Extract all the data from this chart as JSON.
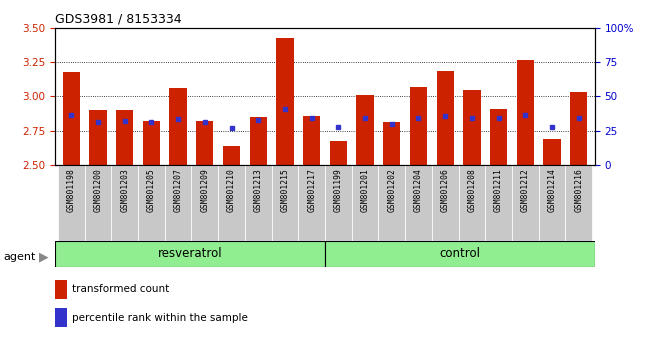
{
  "title": "GDS3981 / 8153334",
  "samples": [
    "GSM801198",
    "GSM801200",
    "GSM801203",
    "GSM801205",
    "GSM801207",
    "GSM801209",
    "GSM801210",
    "GSM801213",
    "GSM801215",
    "GSM801217",
    "GSM801199",
    "GSM801201",
    "GSM801202",
    "GSM801204",
    "GSM801206",
    "GSM801208",
    "GSM801211",
    "GSM801212",
    "GSM801214",
    "GSM801216"
  ],
  "red_values": [
    3.18,
    2.9,
    2.9,
    2.82,
    3.06,
    2.82,
    2.64,
    2.85,
    3.43,
    2.86,
    2.67,
    3.01,
    2.81,
    3.07,
    3.19,
    3.05,
    2.91,
    3.27,
    2.69,
    3.03
  ],
  "blue_values": [
    2.865,
    2.815,
    2.82,
    2.815,
    2.835,
    2.815,
    2.765,
    2.83,
    2.905,
    2.845,
    2.775,
    2.84,
    2.795,
    2.845,
    2.855,
    2.84,
    2.84,
    2.865,
    2.775,
    2.84
  ],
  "ylim": [
    2.5,
    3.5
  ],
  "y_ticks": [
    2.5,
    2.75,
    3.0,
    3.25,
    3.5
  ],
  "right_yticks": [
    0,
    25,
    50,
    75,
    100
  ],
  "right_yticklabels": [
    "0",
    "25",
    "50",
    "75",
    "100%"
  ],
  "bar_color": "#cc2200",
  "blue_color": "#3333cc",
  "bar_bottom": 2.5,
  "left_tick_color": "#cc2200",
  "right_tick_color": "#0000cc",
  "group_color": "#90ee90",
  "xtick_bg": "#c8c8c8",
  "resveratrol_count": 10,
  "control_count": 10
}
